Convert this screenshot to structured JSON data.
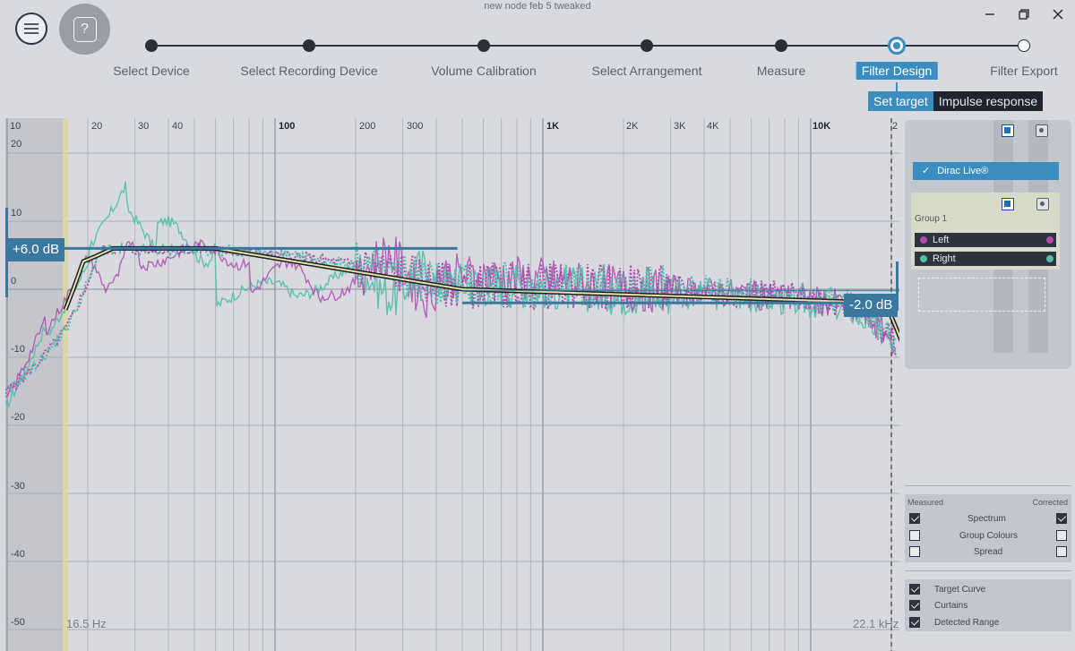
{
  "window": {
    "title": "new node feb 5 tweaked"
  },
  "icons": {
    "menu": "hamburger-menu-icon",
    "help": "question-mark-icon",
    "minimize": "minimize-icon",
    "restore": "restore-icon",
    "close": "close-icon"
  },
  "wizard": {
    "steps": [
      {
        "label": "Select Device",
        "state": "done"
      },
      {
        "label": "Select Recording Device",
        "state": "done"
      },
      {
        "label": "Volume Calibration",
        "state": "done"
      },
      {
        "label": "Select Arrangement",
        "state": "done"
      },
      {
        "label": "Measure",
        "state": "done"
      },
      {
        "label": "Filter Design",
        "state": "current"
      },
      {
        "label": "Filter Export",
        "state": "todo"
      }
    ],
    "subtabs": {
      "set_target": "Set target",
      "impulse_response": "Impulse response"
    }
  },
  "plot": {
    "freq_labels": [
      "10",
      "20",
      "30",
      "40",
      "100",
      "200",
      "300",
      "1K",
      "2K",
      "3K",
      "4K",
      "10K",
      "2"
    ],
    "db_labels": [
      "20",
      "10",
      "0",
      "-10",
      "-20",
      "-30",
      "-40",
      "-50"
    ],
    "low_range_label": "16.5 Hz",
    "high_range_label": "22.1 kHz",
    "low_flag": "+6.0 dB",
    "high_flag": "-2.0 dB",
    "colors": {
      "left": "#b04bb0",
      "right": "#4fbfa8",
      "target": "#e6e2a6",
      "accent": "#3b8dbf",
      "flag": "#3a78a0"
    }
  },
  "sidebar": {
    "filter_item": "Dirac Live®",
    "group_title": "Group 1",
    "channels": [
      {
        "label": "Left",
        "color": "#b04bb0"
      },
      {
        "label": "Right",
        "color": "#4fbfa8"
      }
    ]
  },
  "display_options": {
    "measured_header": "Measured",
    "corrected_header": "Corrected",
    "rows": [
      {
        "label": "Spectrum",
        "measured": true,
        "corrected": true
      },
      {
        "label": "Group Colours",
        "measured": false,
        "corrected": false
      },
      {
        "label": "Spread",
        "measured": false,
        "corrected": false
      }
    ]
  },
  "curve_options": [
    {
      "label": "Target Curve",
      "checked": true
    },
    {
      "label": "Curtains",
      "checked": true
    },
    {
      "label": "Detected Range",
      "checked": true
    }
  ]
}
